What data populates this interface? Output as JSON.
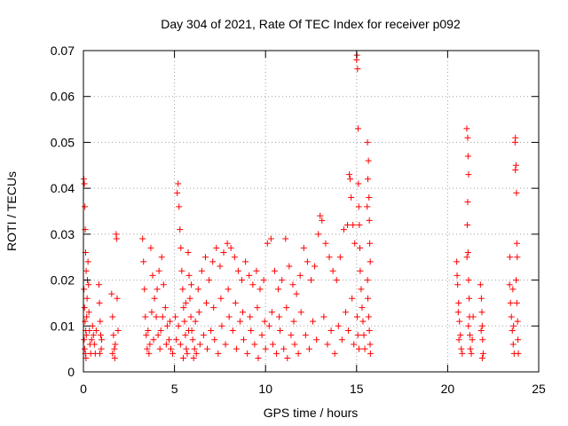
{
  "chart_data": {
    "type": "scatter",
    "title": "Day 304 of 2021, Rate Of TEC Index for receiver p092",
    "xlabel": "GPS time / hours",
    "ylabel": "ROTI / TECUs",
    "xlim": [
      0,
      25
    ],
    "ylim": [
      0,
      0.07
    ],
    "xticks": [
      0,
      5,
      10,
      15,
      20,
      25
    ],
    "yticks": [
      0,
      0.01,
      0.02,
      0.03,
      0.04,
      0.05,
      0.06,
      0.07
    ],
    "xtick_labels": [
      "0",
      "5",
      "10",
      "15",
      "20",
      "25"
    ],
    "ytick_labels": [
      "0",
      "0.01",
      "0.02",
      "0.03",
      "0.04",
      "0.05",
      "0.06",
      "0.07"
    ],
    "grid": true,
    "marker": "+",
    "color": "#ff0000",
    "series": [
      {
        "points": [
          [
            0.02,
            0.042
          ],
          [
            0.05,
            0.041
          ],
          [
            0.08,
            0.036
          ],
          [
            0.1,
            0.031
          ],
          [
            0.12,
            0.026
          ],
          [
            0.15,
            0.022
          ],
          [
            0.03,
            0.018
          ],
          [
            0.06,
            0.014
          ],
          [
            0.09,
            0.011
          ],
          [
            0.13,
            0.009
          ],
          [
            0.04,
            0.007
          ],
          [
            0.07,
            0.005
          ],
          [
            0.11,
            0.004
          ],
          [
            0.14,
            0.003
          ],
          [
            0.16,
            0.008
          ],
          [
            0.18,
            0.012
          ],
          [
            0.2,
            0.016
          ],
          [
            0.22,
            0.02
          ],
          [
            0.25,
            0.024
          ],
          [
            0.28,
            0.019
          ],
          [
            0.3,
            0.013
          ],
          [
            0.33,
            0.009
          ],
          [
            0.36,
            0.006
          ],
          [
            0.4,
            0.004
          ],
          [
            0.45,
            0.007
          ],
          [
            0.5,
            0.01
          ],
          [
            0.55,
            0.008
          ],
          [
            0.6,
            0.006
          ],
          [
            0.65,
            0.004
          ],
          [
            0.7,
            0.009
          ],
          [
            0.85,
            0.019
          ],
          [
            0.88,
            0.015
          ],
          [
            0.92,
            0.011
          ],
          [
            0.95,
            0.008
          ],
          [
            0.98,
            0.005
          ],
          [
            1.0,
            0.007
          ],
          [
            0.9,
            0.004
          ],
          [
            1.55,
            0.017
          ],
          [
            1.6,
            0.012
          ],
          [
            1.65,
            0.008
          ],
          [
            1.7,
            0.005
          ],
          [
            1.75,
            0.006
          ],
          [
            1.8,
            0.03
          ],
          [
            1.82,
            0.029
          ],
          [
            1.85,
            0.016
          ],
          [
            1.9,
            0.009
          ],
          [
            1.6,
            0.004
          ],
          [
            1.72,
            0.003
          ],
          [
            3.25,
            0.029
          ],
          [
            3.3,
            0.024
          ],
          [
            3.35,
            0.018
          ],
          [
            3.4,
            0.012
          ],
          [
            3.45,
            0.008
          ],
          [
            3.5,
            0.005
          ],
          [
            3.6,
            0.004
          ],
          [
            3.7,
            0.027
          ],
          [
            3.8,
            0.021
          ],
          [
            3.9,
            0.016
          ],
          [
            4.0,
            0.012
          ],
          [
            4.1,
            0.008
          ],
          [
            4.2,
            0.005
          ],
          [
            4.3,
            0.025
          ],
          [
            4.4,
            0.019
          ],
          [
            4.5,
            0.014
          ],
          [
            4.6,
            0.01
          ],
          [
            4.7,
            0.007
          ],
          [
            4.8,
            0.005
          ],
          [
            4.9,
            0.004
          ],
          [
            3.55,
            0.009
          ],
          [
            3.65,
            0.006
          ],
          [
            3.75,
            0.013
          ],
          [
            3.85,
            0.007
          ],
          [
            4.05,
            0.018
          ],
          [
            4.15,
            0.022
          ],
          [
            4.25,
            0.009
          ],
          [
            4.35,
            0.012
          ],
          [
            4.55,
            0.006
          ],
          [
            4.75,
            0.011
          ],
          [
            5.15,
            0.039
          ],
          [
            5.2,
            0.041
          ],
          [
            5.25,
            0.036
          ],
          [
            5.3,
            0.031
          ],
          [
            5.35,
            0.027
          ],
          [
            5.4,
            0.022
          ],
          [
            5.45,
            0.018
          ],
          [
            5.5,
            0.014
          ],
          [
            5.55,
            0.011
          ],
          [
            5.6,
            0.008
          ],
          [
            5.65,
            0.005
          ],
          [
            5.7,
            0.004
          ],
          [
            5.75,
            0.026
          ],
          [
            5.8,
            0.021
          ],
          [
            5.85,
            0.016
          ],
          [
            5.9,
            0.012
          ],
          [
            5.95,
            0.009
          ],
          [
            6.0,
            0.007
          ],
          [
            6.1,
            0.005
          ],
          [
            6.2,
            0.004
          ],
          [
            5.1,
            0.007
          ],
          [
            5.05,
            0.012
          ],
          [
            5.22,
            0.01
          ],
          [
            5.33,
            0.006
          ],
          [
            5.48,
            0.003
          ],
          [
            5.62,
            0.015
          ],
          [
            5.78,
            0.009
          ],
          [
            5.92,
            0.019
          ],
          [
            6.05,
            0.003
          ],
          [
            6.15,
            0.011
          ],
          [
            6.3,
            0.018
          ],
          [
            6.5,
            0.022
          ],
          [
            6.7,
            0.025
          ],
          [
            6.9,
            0.02
          ],
          [
            7.1,
            0.024
          ],
          [
            7.3,
            0.027
          ],
          [
            7.5,
            0.023
          ],
          [
            7.7,
            0.026
          ],
          [
            7.9,
            0.028
          ],
          [
            8.1,
            0.027
          ],
          [
            8.3,
            0.025
          ],
          [
            8.5,
            0.022
          ],
          [
            8.7,
            0.02
          ],
          [
            8.9,
            0.024
          ],
          [
            9.1,
            0.021
          ],
          [
            9.3,
            0.019
          ],
          [
            9.5,
            0.022
          ],
          [
            9.7,
            0.018
          ],
          [
            9.9,
            0.02
          ],
          [
            10.1,
            0.028
          ],
          [
            10.3,
            0.029
          ],
          [
            10.5,
            0.022
          ],
          [
            10.7,
            0.018
          ],
          [
            10.9,
            0.02
          ],
          [
            11.1,
            0.029
          ],
          [
            11.3,
            0.023
          ],
          [
            11.5,
            0.019
          ],
          [
            11.7,
            0.017
          ],
          [
            11.9,
            0.021
          ],
          [
            6.4,
            0.006
          ],
          [
            6.6,
            0.008
          ],
          [
            6.8,
            0.005
          ],
          [
            7.0,
            0.009
          ],
          [
            7.2,
            0.007
          ],
          [
            7.4,
            0.004
          ],
          [
            7.6,
            0.01
          ],
          [
            7.8,
            0.006
          ],
          [
            8.0,
            0.012
          ],
          [
            8.2,
            0.009
          ],
          [
            8.4,
            0.005
          ],
          [
            8.6,
            0.011
          ],
          [
            8.8,
            0.007
          ],
          [
            9.0,
            0.004
          ],
          [
            9.2,
            0.009
          ],
          [
            9.4,
            0.006
          ],
          [
            9.6,
            0.003
          ],
          [
            9.8,
            0.008
          ],
          [
            10.0,
            0.005
          ],
          [
            10.2,
            0.01
          ],
          [
            10.4,
            0.006
          ],
          [
            10.6,
            0.004
          ],
          [
            10.8,
            0.009
          ],
          [
            11.0,
            0.005
          ],
          [
            11.2,
            0.003
          ],
          [
            11.4,
            0.008
          ],
          [
            11.6,
            0.006
          ],
          [
            11.8,
            0.004
          ],
          [
            6.35,
            0.013
          ],
          [
            6.75,
            0.015
          ],
          [
            7.15,
            0.014
          ],
          [
            7.55,
            0.016
          ],
          [
            7.95,
            0.018
          ],
          [
            8.35,
            0.015
          ],
          [
            8.75,
            0.013
          ],
          [
            9.15,
            0.012
          ],
          [
            9.55,
            0.014
          ],
          [
            9.95,
            0.011
          ],
          [
            10.35,
            0.013
          ],
          [
            10.75,
            0.012
          ],
          [
            11.15,
            0.014
          ],
          [
            11.55,
            0.011
          ],
          [
            11.95,
            0.013
          ],
          [
            12.1,
            0.027
          ],
          [
            12.3,
            0.024
          ],
          [
            12.5,
            0.02
          ],
          [
            12.7,
            0.023
          ],
          [
            12.9,
            0.03
          ],
          [
            13.0,
            0.034
          ],
          [
            13.1,
            0.033
          ],
          [
            13.3,
            0.028
          ],
          [
            13.5,
            0.025
          ],
          [
            13.7,
            0.022
          ],
          [
            13.9,
            0.02
          ],
          [
            14.1,
            0.025
          ],
          [
            14.3,
            0.031
          ],
          [
            14.5,
            0.032
          ],
          [
            14.6,
            0.043
          ],
          [
            14.65,
            0.042
          ],
          [
            14.7,
            0.038
          ],
          [
            14.8,
            0.032
          ],
          [
            14.9,
            0.028
          ],
          [
            12.2,
            0.008
          ],
          [
            12.4,
            0.005
          ],
          [
            12.6,
            0.011
          ],
          [
            12.8,
            0.007
          ],
          [
            13.2,
            0.012
          ],
          [
            13.4,
            0.006
          ],
          [
            13.6,
            0.009
          ],
          [
            13.8,
            0.004
          ],
          [
            14.0,
            0.01
          ],
          [
            14.2,
            0.007
          ],
          [
            14.4,
            0.013
          ],
          [
            14.55,
            0.009
          ],
          [
            14.75,
            0.016
          ],
          [
            14.85,
            0.006
          ],
          [
            15.0,
            0.068
          ],
          [
            15.02,
            0.069
          ],
          [
            15.05,
            0.066
          ],
          [
            15.08,
            0.053
          ],
          [
            15.1,
            0.041
          ],
          [
            15.12,
            0.036
          ],
          [
            15.15,
            0.032
          ],
          [
            15.18,
            0.027
          ],
          [
            15.2,
            0.022
          ],
          [
            15.25,
            0.018
          ],
          [
            15.3,
            0.014
          ],
          [
            15.35,
            0.011
          ],
          [
            15.4,
            0.008
          ],
          [
            15.45,
            0.005
          ],
          [
            15.03,
            0.012
          ],
          [
            15.07,
            0.008
          ],
          [
            15.13,
            0.005
          ],
          [
            15.6,
            0.05
          ],
          [
            15.65,
            0.046
          ],
          [
            15.62,
            0.042
          ],
          [
            15.68,
            0.038
          ],
          [
            15.7,
            0.033
          ],
          [
            15.72,
            0.028
          ],
          [
            15.75,
            0.024
          ],
          [
            15.6,
            0.02
          ],
          [
            15.62,
            0.016
          ],
          [
            15.66,
            0.012
          ],
          [
            15.7,
            0.009
          ],
          [
            15.74,
            0.006
          ],
          [
            15.76,
            0.004
          ],
          [
            15.58,
            0.036
          ],
          [
            20.5,
            0.024
          ],
          [
            20.55,
            0.019
          ],
          [
            20.6,
            0.015
          ],
          [
            20.65,
            0.011
          ],
          [
            20.7,
            0.008
          ],
          [
            20.75,
            0.005
          ],
          [
            20.8,
            0.004
          ],
          [
            20.52,
            0.021
          ],
          [
            20.58,
            0.013
          ],
          [
            20.62,
            0.007
          ],
          [
            21.05,
            0.053
          ],
          [
            21.1,
            0.051
          ],
          [
            21.12,
            0.047
          ],
          [
            21.15,
            0.043
          ],
          [
            21.1,
            0.037
          ],
          [
            21.08,
            0.032
          ],
          [
            21.12,
            0.026
          ],
          [
            21.15,
            0.02
          ],
          [
            21.18,
            0.016
          ],
          [
            21.2,
            0.012
          ],
          [
            21.22,
            0.008
          ],
          [
            21.25,
            0.005
          ],
          [
            21.06,
            0.025
          ],
          [
            21.14,
            0.01
          ],
          [
            21.3,
            0.004
          ],
          [
            21.35,
            0.007
          ],
          [
            21.4,
            0.012
          ],
          [
            21.8,
            0.019
          ],
          [
            21.85,
            0.016
          ],
          [
            21.88,
            0.013
          ],
          [
            21.9,
            0.01
          ],
          [
            21.92,
            0.007
          ],
          [
            21.95,
            0.004
          ],
          [
            21.84,
            0.009
          ],
          [
            21.9,
            0.003
          ],
          [
            23.4,
            0.019
          ],
          [
            23.45,
            0.015
          ],
          [
            23.5,
            0.012
          ],
          [
            23.55,
            0.009
          ],
          [
            23.6,
            0.006
          ],
          [
            23.65,
            0.004
          ],
          [
            23.42,
            0.025
          ],
          [
            23.58,
            0.018
          ],
          [
            23.62,
            0.01
          ],
          [
            23.7,
            0.05
          ],
          [
            23.72,
            0.051
          ],
          [
            23.75,
            0.045
          ],
          [
            23.72,
            0.044
          ],
          [
            23.78,
            0.039
          ],
          [
            23.8,
            0.028
          ],
          [
            23.82,
            0.025
          ],
          [
            23.76,
            0.02
          ],
          [
            23.8,
            0.015
          ],
          [
            23.84,
            0.011
          ],
          [
            23.86,
            0.007
          ],
          [
            23.88,
            0.004
          ]
        ]
      }
    ]
  }
}
